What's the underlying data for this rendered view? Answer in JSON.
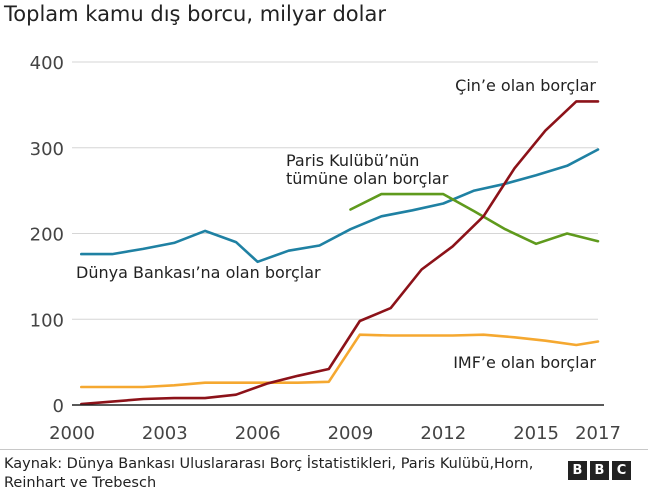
{
  "title": "Toplam kamu dış borcu, milyar dolar",
  "source": "Kaynak: Dünya Bankası Uluslararası Borç İstatistikleri, Paris Kulübü,Horn, Reinhart ve Trebesch",
  "logo": {
    "letters": [
      "B",
      "B",
      "C"
    ]
  },
  "colors": {
    "world_bank": "#1f81a3",
    "paris_club": "#5f9a1d",
    "china": "#8c1219",
    "imf": "#f5a830",
    "grid": "#d6d6d6",
    "axis": "#222222"
  },
  "chart_data": {
    "type": "line",
    "title": "Toplam kamu dış borcu, milyar dolar",
    "xlim": [
      2000,
      2017
    ],
    "ylim": [
      0,
      400
    ],
    "x_ticks": [
      2000,
      2003,
      2006,
      2009,
      2012,
      2015,
      2017
    ],
    "x_tick_labels": [
      "2000",
      "2003",
      "2006",
      "2009",
      "2012",
      "2015",
      "2017"
    ],
    "y_ticks": [
      0,
      100,
      200,
      300,
      400
    ],
    "y_tick_labels": [
      "0",
      "100",
      "200",
      "300",
      "400"
    ],
    "grid": "horizontal",
    "series": [
      {
        "name": "Dünya Bankası’na olan borçlar",
        "color": "#1f81a3",
        "label_lines": [
          "Dünya Bankası’na olan borçlar"
        ],
        "x": [
          2000.3,
          2001.3,
          2002.3,
          2003.3,
          2004.3,
          2005.3,
          2006.0,
          2007.0,
          2008.0,
          2009.0,
          2010.0,
          2011.0,
          2012.0,
          2013.0,
          2014.0,
          2015.0,
          2016.0,
          2017.0
        ],
        "y": [
          176,
          176,
          182,
          189,
          203,
          190,
          167,
          180,
          186,
          205,
          220,
          227,
          235,
          250,
          258,
          268,
          279,
          298
        ]
      },
      {
        "name": "Paris Kulübü’nün tümüne olan borçlar",
        "color": "#5f9a1d",
        "label_lines": [
          "Paris Kulübü’nün",
          "tümüne olan borçlar"
        ],
        "x": [
          2009.0,
          2010.0,
          2011.0,
          2012.0,
          2013.0,
          2014.0,
          2015.0,
          2016.0,
          2017.0
        ],
        "y": [
          228,
          246,
          246,
          246,
          226,
          205,
          188,
          200,
          191
        ]
      },
      {
        "name": "Çin’e olan borçlar",
        "color": "#8c1219",
        "label_lines": [
          "Çin’e olan borçlar"
        ],
        "x": [
          2000.3,
          2001.3,
          2002.3,
          2003.3,
          2004.3,
          2005.3,
          2006.3,
          2007.3,
          2008.3,
          2009.3,
          2010.3,
          2011.3,
          2012.3,
          2013.3,
          2014.3,
          2015.3,
          2016.3,
          2017.0
        ],
        "y": [
          1,
          4,
          7,
          8,
          8,
          12,
          25,
          34,
          42,
          98,
          113,
          158,
          185,
          220,
          276,
          320,
          354,
          354
        ]
      },
      {
        "name": "IMF’e olan borçlar",
        "color": "#f5a830",
        "label_lines": [
          "IMF’e olan borçlar"
        ],
        "x": [
          2000.3,
          2001.3,
          2002.3,
          2003.3,
          2004.3,
          2005.3,
          2006.3,
          2007.3,
          2008.3,
          2009.3,
          2010.3,
          2011.3,
          2012.3,
          2013.3,
          2014.3,
          2015.3,
          2016.3,
          2017.0
        ],
        "y": [
          21,
          21,
          21,
          23,
          26,
          26,
          26,
          26,
          27,
          82,
          81,
          81,
          81,
          82,
          79,
          75,
          70,
          74
        ]
      }
    ]
  }
}
